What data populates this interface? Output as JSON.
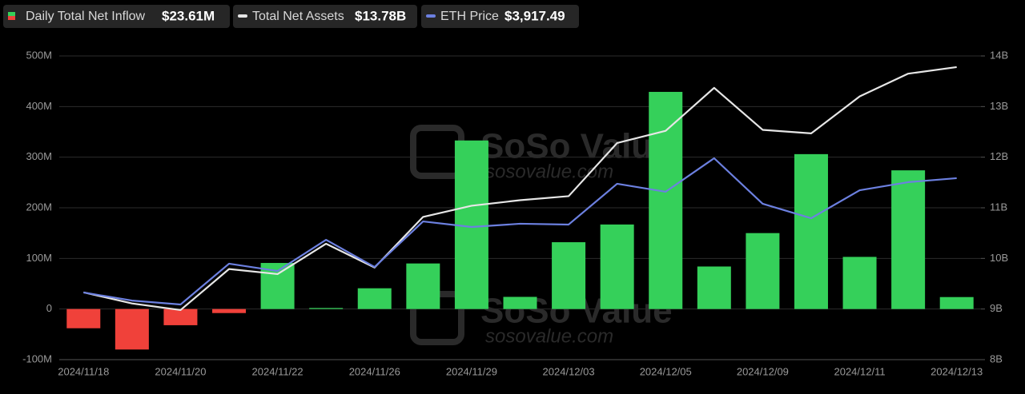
{
  "chart_data": {
    "type": "bar_line",
    "legend": [
      {
        "label": "Daily Total Net Inflow",
        "value_text": "$23.61M"
      },
      {
        "label": "Total Net Assets",
        "value_text": "$13.78B"
      },
      {
        "label": "ETH Price",
        "value_text": "$3,917.49"
      }
    ],
    "watermark": [
      "SoSo Value",
      "sosovalue.com"
    ],
    "categories": [
      "2024/11/18",
      null,
      "2024/11/20",
      null,
      "2024/11/22",
      null,
      "2024/11/26",
      null,
      "2024/11/29",
      null,
      "2024/12/03",
      null,
      "2024/12/05",
      null,
      "2024/12/09",
      null,
      "2024/12/11",
      null,
      "2024/12/13"
    ],
    "series": [
      {
        "name": "Daily Total Net Inflow",
        "kind": "bar",
        "pos_color": "#35d05a",
        "neg_color": "#f0413a",
        "values": [
          -38,
          -80,
          -32,
          -8,
          91,
          2,
          41,
          90,
          333,
          24,
          132,
          167,
          429,
          84,
          150,
          306,
          103,
          274,
          23.61
        ]
      },
      {
        "name": "Total Net Assets",
        "kind": "line",
        "axis": "y2",
        "color": "#e6e6e6",
        "values": [
          9.33,
          9.11,
          8.98,
          9.79,
          9.69,
          10.29,
          9.82,
          10.82,
          11.04,
          11.15,
          11.23,
          12.28,
          12.52,
          13.37,
          12.54,
          12.47,
          13.2,
          13.65,
          13.78
        ]
      },
      {
        "name": "ETH Price",
        "kind": "line",
        "axis": "y3",
        "color": "#6c80e0",
        "values": [
          3071,
          3011,
          2982,
          3284,
          3230,
          3461,
          3260,
          3597,
          3556,
          3580,
          3574,
          3876,
          3817,
          4065,
          3728,
          3621,
          3828,
          3888,
          3917.49
        ]
      }
    ],
    "ylim": [
      -100,
      500
    ],
    "yticks": [
      {
        "value": -100,
        "label": "-100M"
      },
      0,
      {
        "value": 100,
        "label": "100M"
      },
      {
        "value": 200,
        "label": "200M"
      },
      {
        "value": 300,
        "label": "300M"
      },
      {
        "value": 400,
        "label": "400M"
      },
      {
        "value": 500,
        "label": "500M"
      }
    ],
    "y2lim": [
      8,
      14
    ],
    "y2ticks": [
      {
        "value": 8,
        "label": "8B"
      },
      {
        "value": 9,
        "label": "9B"
      },
      {
        "value": 10,
        "label": "10B"
      },
      {
        "value": 11,
        "label": "11B"
      },
      {
        "value": 12,
        "label": "12B"
      },
      {
        "value": 13,
        "label": "13B"
      },
      {
        "value": 14,
        "label": "14B"
      }
    ],
    "grid": true
  }
}
